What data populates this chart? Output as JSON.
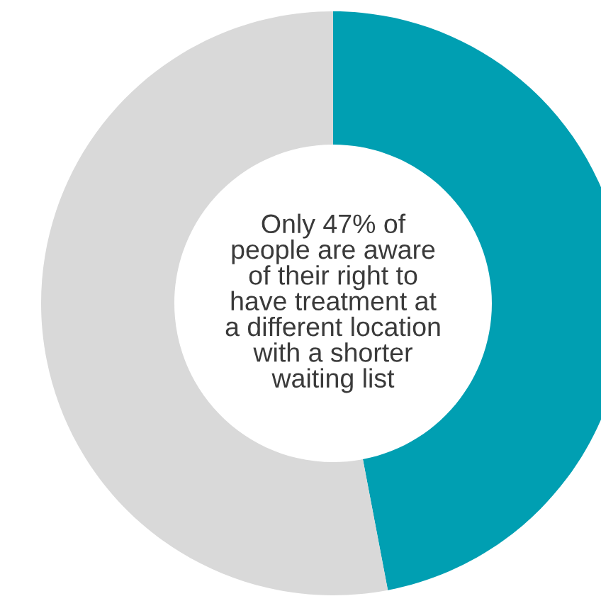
{
  "chart_data": {
    "type": "donut",
    "categories": [
      null,
      null
    ],
    "values": [
      47,
      53
    ],
    "colors": [
      "#009fb2",
      "#d9d9d9"
    ],
    "annotations": [
      "Only 47% of\npeople are aware\nof their right to\nhave treatment at\na different location\nwith a shorter\nwaiting list"
    ]
  }
}
